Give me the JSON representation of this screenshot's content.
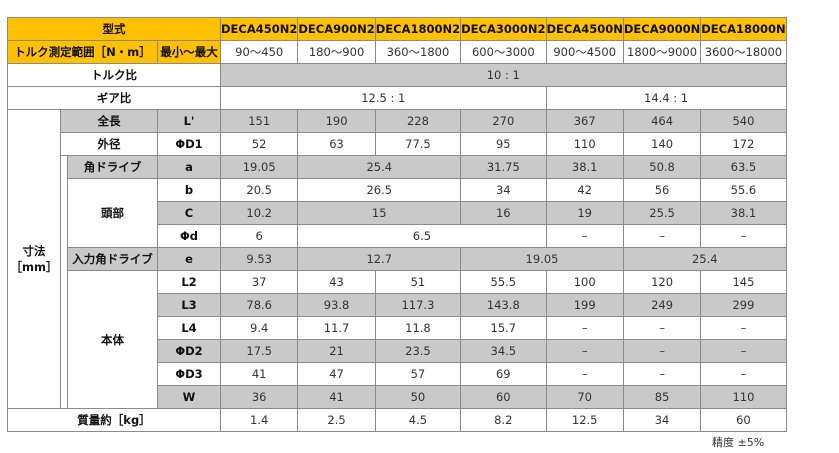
{
  "header": {
    "model_label": "型式",
    "models": [
      "DECA450N2",
      "DECA900N2",
      "DECA1800N2",
      "DECA3000N2",
      "DECA4500N",
      "DECA9000N",
      "DECA18000N"
    ],
    "range_label": "トルク測定範囲［N・m］",
    "range_sub": "最小～最大",
    "ranges": [
      "90～450",
      "180～900",
      "360～1800",
      "600～3000",
      "900～4500",
      "1800～9000",
      "3600～18000"
    ]
  },
  "torque_ratio": {
    "label": "トルク比",
    "value": "10 : 1"
  },
  "gear_ratio": {
    "label": "ギア比",
    "values": [
      "12.5 : 1",
      "14.4 : 1"
    ]
  },
  "dimensions": {
    "label": "寸法",
    "unit": "［mm］",
    "groups": [
      "全長",
      "外径",
      "角ドライブ",
      "頭部",
      "入力角ドライブ",
      "本体"
    ],
    "rows": [
      {
        "symbol": "L'",
        "cells": [
          "151",
          "190",
          "228",
          "270",
          "367",
          "464",
          "540"
        ]
      },
      {
        "symbol": "ΦD1",
        "cells": [
          "52",
          "63",
          "77.5",
          "95",
          "110",
          "140",
          "172"
        ]
      },
      {
        "symbol": "a",
        "cells": [
          "19.05",
          "25.4",
          "31.75",
          "38.1",
          "50.8",
          "63.5"
        ]
      },
      {
        "symbol": "b",
        "cells": [
          "20.5",
          "26.5",
          "34",
          "42",
          "56",
          "55.6"
        ]
      },
      {
        "symbol": "C",
        "cells": [
          "10.2",
          "15",
          "16",
          "19",
          "25.5",
          "38.1"
        ]
      },
      {
        "symbol": "Φd",
        "cells": [
          "6",
          "6.5",
          "–",
          "–",
          "–"
        ]
      },
      {
        "symbol": "e",
        "cells": [
          "9.53",
          "12.7",
          "19.05",
          "25.4"
        ]
      },
      {
        "symbol": "L2",
        "cells": [
          "37",
          "43",
          "51",
          "55.5",
          "100",
          "120",
          "145"
        ]
      },
      {
        "symbol": "L3",
        "cells": [
          "78.6",
          "93.8",
          "117.3",
          "143.8",
          "199",
          "249",
          "299"
        ]
      },
      {
        "symbol": "L4",
        "cells": [
          "9.4",
          "11.7",
          "11.8",
          "15.7",
          "–",
          "–",
          "–"
        ]
      },
      {
        "symbol": "ΦD2",
        "cells": [
          "17.5",
          "21",
          "23.5",
          "34.5",
          "–",
          "–",
          "–"
        ]
      },
      {
        "symbol": "ΦD3",
        "cells": [
          "41",
          "47",
          "57",
          "69",
          "–",
          "–",
          "–"
        ]
      },
      {
        "symbol": "W",
        "cells": [
          "36",
          "41",
          "50",
          "60",
          "70",
          "85",
          "110"
        ]
      }
    ]
  },
  "mass": {
    "label": "質量約［kg］",
    "cells": [
      "1.4",
      "2.5",
      "4.5",
      "8.2",
      "12.5",
      "34",
      "60"
    ]
  },
  "footer": {
    "note": "精度 ±5%"
  }
}
